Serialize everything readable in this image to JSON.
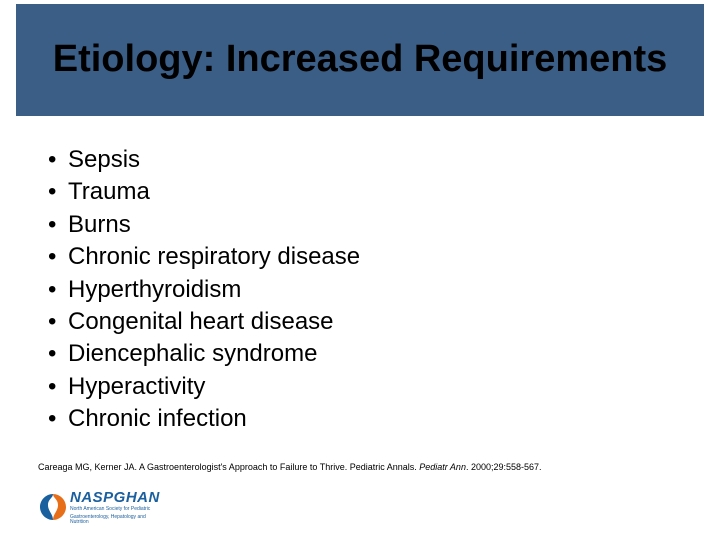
{
  "colors": {
    "title_bar_bg": "#3b5e86",
    "title_text": "#000000",
    "body_text": "#000000",
    "logo_blue": "#1a5f9e",
    "logo_orange": "#e86f1a",
    "background": "#ffffff"
  },
  "typography": {
    "title_fontsize": 38,
    "title_weight": "bold",
    "bullet_fontsize": 24,
    "citation_fontsize": 9,
    "font_family": "Arial"
  },
  "title": "Etiology:  Increased Requirements",
  "bullets": [
    "Sepsis",
    "Trauma",
    "Burns",
    "Chronic respiratory disease",
    "Hyperthyroidism",
    "Congenital heart disease",
    "Diencephalic syndrome",
    "Hyperactivity",
    "Chronic infection"
  ],
  "citation": {
    "prefix": "Careaga MG, Kerner JA. A Gastroenterologist's Approach to Failure to Thrive. Pediatric Annals. ",
    "italic": "Pediatr Ann",
    "suffix": ". 2000;29:558-567."
  },
  "logo": {
    "name": "NASPGHAN",
    "tagline1": "North American Society for Pediatric",
    "tagline2": "Gastroenterology, Hepatology and Nutrition"
  }
}
